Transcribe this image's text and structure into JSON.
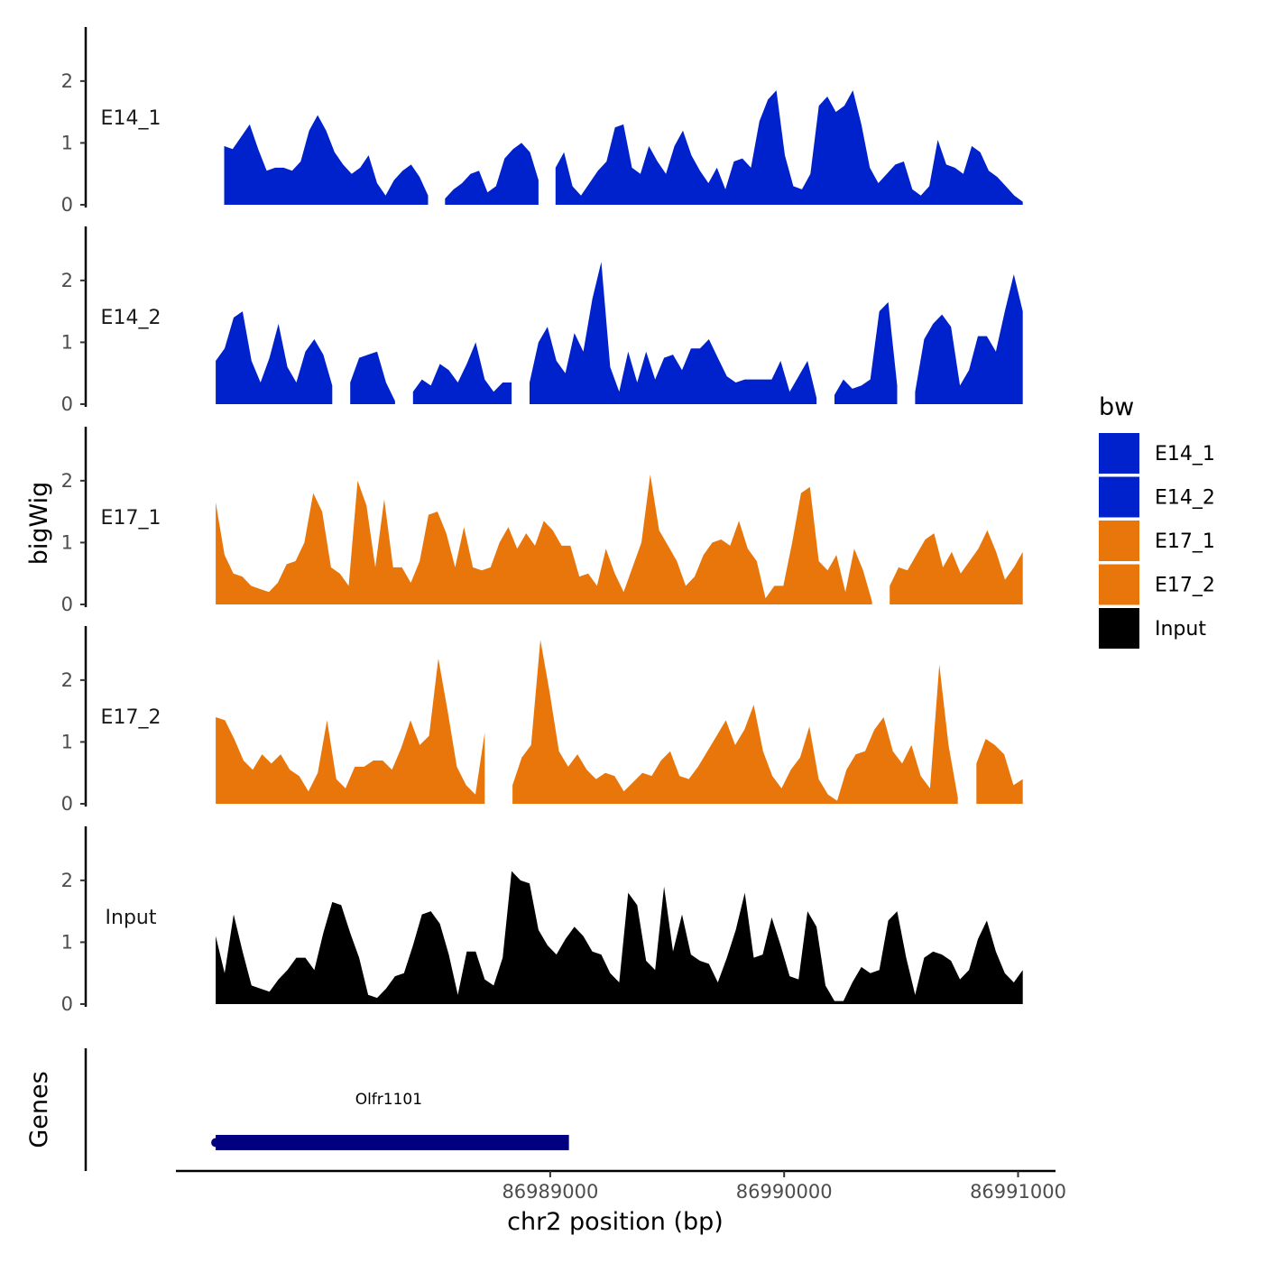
{
  "chart_data": {
    "type": "area",
    "ylabel": "bigWig",
    "xlabel": "chr2 position (bp)",
    "genes_label": "Genes",
    "legend": {
      "title": "bw",
      "placement": "right",
      "entries": [
        {
          "name": "E14_1",
          "color": "#0022cc"
        },
        {
          "name": "E14_2",
          "color": "#0022cc"
        },
        {
          "name": "E17_1",
          "color": "#e8760a"
        },
        {
          "name": "E17_2",
          "color": "#e8760a"
        },
        {
          "name": "Input",
          "color": "#000000"
        }
      ]
    },
    "ylim": [
      0,
      2.8
    ],
    "yticks": [
      0,
      1,
      2
    ],
    "xlim": [
      86987400,
      86991160
    ],
    "xticks": [
      86989000,
      86990000,
      86991000
    ],
    "xtick_labels": [
      "86989000",
      "86990000",
      "86991000"
    ],
    "data_range": [
      86987570,
      86991020
    ],
    "series": [
      {
        "name": "E14_1",
        "color": "#0022cc",
        "label": "E14_1",
        "values": [
          null,
          0.95,
          0.9,
          1.1,
          1.3,
          0.9,
          0.55,
          0.6,
          0.6,
          0.55,
          0.7,
          1.2,
          1.45,
          1.2,
          0.85,
          0.65,
          0.5,
          0.6,
          0.8,
          0.35,
          0.15,
          0.4,
          0.55,
          0.65,
          0.45,
          0.15,
          null,
          0.1,
          0.25,
          0.35,
          0.5,
          0.55,
          0.2,
          0.3,
          0.75,
          0.9,
          1.0,
          0.85,
          0.4,
          null,
          0.6,
          0.85,
          0.3,
          0.15,
          0.35,
          0.55,
          0.7,
          1.25,
          1.3,
          0.6,
          0.5,
          0.95,
          0.7,
          0.5,
          0.95,
          1.2,
          0.8,
          0.55,
          0.35,
          0.6,
          0.25,
          0.7,
          0.75,
          0.6,
          1.35,
          1.7,
          1.85,
          0.8,
          0.3,
          0.25,
          0.5,
          1.6,
          1.75,
          1.5,
          1.6,
          1.85,
          1.3,
          0.6,
          0.35,
          0.5,
          0.65,
          0.7,
          0.25,
          0.15,
          0.3,
          1.05,
          0.65,
          0.6,
          0.5,
          0.95,
          0.85,
          0.55,
          0.45,
          0.3,
          0.15,
          0.05
        ]
      },
      {
        "name": "E14_2",
        "color": "#0022cc",
        "label": "E14_2",
        "values": [
          0.7,
          0.9,
          1.4,
          1.5,
          0.7,
          0.35,
          0.75,
          1.3,
          0.6,
          0.35,
          0.85,
          1.05,
          0.8,
          0.3,
          null,
          0.35,
          0.75,
          0.8,
          0.85,
          0.35,
          0.05,
          null,
          0.2,
          0.4,
          0.3,
          0.65,
          0.55,
          0.35,
          0.65,
          1.0,
          0.4,
          0.2,
          0.35,
          0.35,
          null,
          0.35,
          1.0,
          1.25,
          0.7,
          0.5,
          1.15,
          0.85,
          1.7,
          2.3,
          0.6,
          0.2,
          0.85,
          0.35,
          0.85,
          0.4,
          0.75,
          0.8,
          0.55,
          0.9,
          0.9,
          1.05,
          0.75,
          0.45,
          0.35,
          0.4,
          0.4,
          0.4,
          0.4,
          0.7,
          0.2,
          0.45,
          0.7,
          0.1,
          null,
          0.15,
          0.4,
          0.25,
          0.3,
          0.4,
          1.5,
          1.65,
          0.3,
          null,
          0.2,
          1.05,
          1.3,
          1.45,
          1.25,
          0.3,
          0.55,
          1.1,
          1.1,
          0.85,
          1.5,
          2.1,
          1.5
        ]
      },
      {
        "name": "E17_1",
        "color": "#e8760a",
        "label": "E17_1",
        "values": [
          1.65,
          0.8,
          0.5,
          0.45,
          0.3,
          0.25,
          0.2,
          0.35,
          0.65,
          0.7,
          1.0,
          1.8,
          1.5,
          0.6,
          0.5,
          0.3,
          2.0,
          1.6,
          0.6,
          1.7,
          0.6,
          0.6,
          0.35,
          0.7,
          1.45,
          1.5,
          1.15,
          0.6,
          1.25,
          0.6,
          0.55,
          0.6,
          1.0,
          1.25,
          0.9,
          1.15,
          0.95,
          1.35,
          1.2,
          0.95,
          0.95,
          0.45,
          0.5,
          0.3,
          0.9,
          0.5,
          0.2,
          0.6,
          1.0,
          2.1,
          1.2,
          0.95,
          0.7,
          0.3,
          0.45,
          0.8,
          1.0,
          1.05,
          0.95,
          1.35,
          0.9,
          0.7,
          0.1,
          0.3,
          0.3,
          1.0,
          1.8,
          1.9,
          0.7,
          0.55,
          0.8,
          0.2,
          0.9,
          0.55,
          0.05,
          null,
          0.3,
          0.6,
          0.55,
          0.8,
          1.05,
          1.15,
          0.6,
          0.85,
          0.5,
          0.7,
          0.9,
          1.2,
          0.85,
          0.4,
          0.6,
          0.85
        ]
      },
      {
        "name": "E17_2",
        "color": "#e8760a",
        "label": "E17_2",
        "values": [
          1.4,
          1.35,
          1.05,
          0.7,
          0.55,
          0.8,
          0.65,
          0.8,
          0.55,
          0.45,
          0.2,
          0.5,
          1.35,
          0.4,
          0.25,
          0.6,
          0.6,
          0.7,
          0.7,
          0.55,
          0.9,
          1.35,
          0.95,
          1.1,
          2.35,
          1.5,
          0.6,
          0.3,
          0.15,
          1.15,
          null,
          null,
          0.3,
          0.75,
          0.95,
          2.65,
          1.8,
          0.85,
          0.6,
          0.8,
          0.55,
          0.4,
          0.5,
          0.45,
          0.2,
          0.35,
          0.5,
          0.45,
          0.7,
          0.85,
          0.45,
          0.4,
          0.6,
          0.85,
          1.1,
          1.35,
          0.95,
          1.2,
          1.6,
          0.85,
          0.45,
          0.25,
          0.55,
          0.75,
          1.25,
          0.4,
          0.15,
          0.05,
          0.55,
          0.8,
          0.85,
          1.2,
          1.4,
          0.85,
          0.65,
          0.95,
          0.45,
          0.25,
          2.25,
          0.95,
          0.1,
          null,
          0.65,
          1.05,
          0.95,
          0.8,
          0.3,
          0.4
        ]
      },
      {
        "name": "Input",
        "color": "#000000",
        "label": "Input",
        "values": [
          1.1,
          0.5,
          1.45,
          0.85,
          0.3,
          0.25,
          0.2,
          0.4,
          0.55,
          0.75,
          0.75,
          0.55,
          1.15,
          1.65,
          1.6,
          1.15,
          0.75,
          0.15,
          0.1,
          0.25,
          0.45,
          0.5,
          0.95,
          1.45,
          1.5,
          1.3,
          0.8,
          0.15,
          0.85,
          0.85,
          0.4,
          0.3,
          0.75,
          2.15,
          2.0,
          1.95,
          1.2,
          0.95,
          0.8,
          1.05,
          1.25,
          1.1,
          0.85,
          0.8,
          0.5,
          0.35,
          1.8,
          1.6,
          0.7,
          0.55,
          1.9,
          0.85,
          1.45,
          0.8,
          0.7,
          0.65,
          0.35,
          0.75,
          1.2,
          1.8,
          0.75,
          0.8,
          1.4,
          0.95,
          0.45,
          0.4,
          1.5,
          1.25,
          0.3,
          0.05,
          0.05,
          0.35,
          0.6,
          0.5,
          0.55,
          1.35,
          1.5,
          0.75,
          0.15,
          0.75,
          0.85,
          0.8,
          0.7,
          0.4,
          0.55,
          1.05,
          1.35,
          0.85,
          0.5,
          0.35,
          0.55
        ]
      }
    ],
    "genes": [
      {
        "name": "Olfr1101",
        "start": 86987570,
        "end": 86989080,
        "color": "#000080"
      }
    ]
  }
}
